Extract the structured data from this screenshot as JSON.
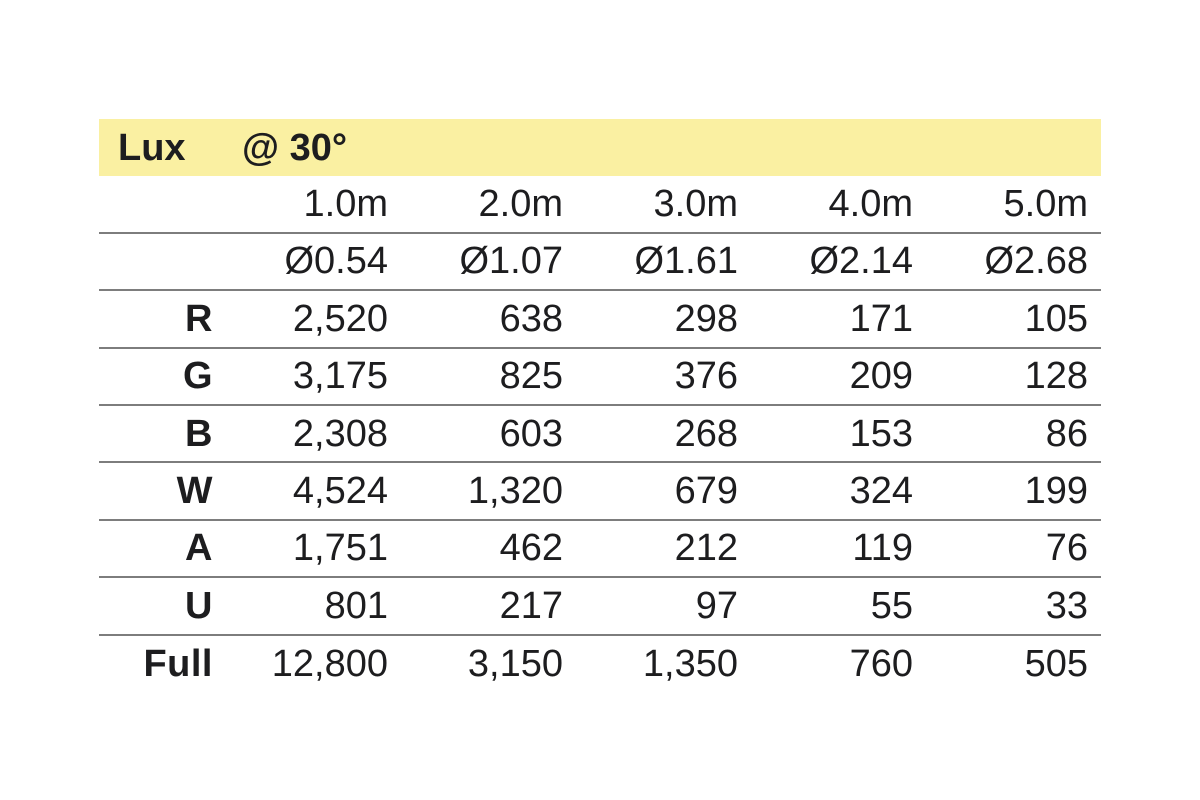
{
  "table": {
    "header": {
      "title": "Lux",
      "angle": "@ 30°"
    },
    "distances": [
      "1.0m",
      "2.0m",
      "3.0m",
      "4.0m",
      "5.0m"
    ],
    "diameters": [
      "Ø0.54",
      "Ø1.07",
      "Ø1.61",
      "Ø2.14",
      "Ø2.68"
    ],
    "rows": [
      {
        "label": "R",
        "values": [
          "2,520",
          "638",
          "298",
          "171",
          "105"
        ]
      },
      {
        "label": "G",
        "values": [
          "3,175",
          "825",
          "376",
          "209",
          "128"
        ]
      },
      {
        "label": "B",
        "values": [
          "2,308",
          "603",
          "268",
          "153",
          "86"
        ]
      },
      {
        "label": "W",
        "values": [
          "4,524",
          "1,320",
          "679",
          "324",
          "199"
        ]
      },
      {
        "label": "A",
        "values": [
          "1,751",
          "462",
          "212",
          "119",
          "76"
        ]
      },
      {
        "label": "U",
        "values": [
          "801",
          "217",
          "97",
          "55",
          "33"
        ]
      },
      {
        "label": "Full",
        "values": [
          "12,800",
          "3,150",
          "1,350",
          "760",
          "505"
        ]
      }
    ],
    "styles": {
      "background": "#ffffff",
      "text_color": "#1d1d1f",
      "band_background": "#faf0a2",
      "rule_color": "#7d7d7d"
    }
  }
}
